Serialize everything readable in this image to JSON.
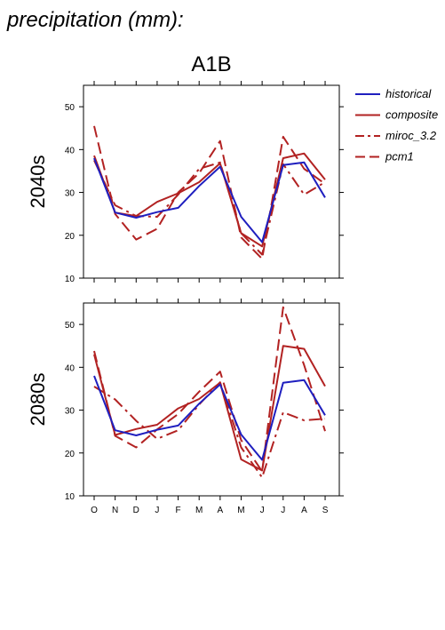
{
  "figure": {
    "title": "precipitation (mm):",
    "scenario": "A1B"
  },
  "chart_data": [
    {
      "type": "line",
      "panel": "2040s",
      "ylabel": "2040s",
      "categories": [
        "O",
        "N",
        "D",
        "J",
        "F",
        "M",
        "A",
        "M",
        "J",
        "J",
        "A",
        "S"
      ],
      "ylim": [
        10,
        55
      ],
      "yticks": [
        10,
        20,
        30,
        40,
        50
      ],
      "series": [
        {
          "name": "historical",
          "color": "#1f1fbf",
          "dash": "solid",
          "values": [
            38,
            25.3,
            24.1,
            25.4,
            26.4,
            31.5,
            36,
            24.3,
            18.4,
            36.4,
            37,
            28.8
          ]
        },
        {
          "name": "composite",
          "color": "#b22222",
          "dash": "solid",
          "values": [
            38.6,
            25.3,
            24.5,
            27.8,
            29.8,
            32.4,
            36.8,
            20.5,
            17.4,
            38,
            39.1,
            33
          ]
        },
        {
          "name": "miroc_3.2",
          "color": "#b22222",
          "dash": "dashdot",
          "values": [
            37.5,
            27,
            24.5,
            24.3,
            29.5,
            35.5,
            37,
            20.5,
            15.5,
            36.6,
            29.5,
            32.4
          ]
        },
        {
          "name": "pcm1",
          "color": "#b22222",
          "dash": "dash",
          "values": [
            45.5,
            25,
            19,
            21.5,
            30,
            34.5,
            42,
            19.5,
            14.5,
            43,
            35.5,
            32
          ]
        }
      ]
    },
    {
      "type": "line",
      "panel": "2080s",
      "ylabel": "2080s",
      "categories": [
        "O",
        "N",
        "D",
        "J",
        "F",
        "M",
        "A",
        "M",
        "J",
        "J",
        "A",
        "S"
      ],
      "ylim": [
        10,
        55
      ],
      "yticks": [
        10,
        20,
        30,
        40,
        50
      ],
      "series": [
        {
          "name": "historical",
          "color": "#1f1fbf",
          "dash": "solid",
          "values": [
            38,
            25.3,
            24.1,
            25.4,
            26.4,
            31.5,
            36,
            24.3,
            18.4,
            36.4,
            37,
            28.8
          ]
        },
        {
          "name": "composite",
          "color": "#b22222",
          "dash": "solid",
          "values": [
            43,
            24.2,
            25.6,
            26.6,
            30.4,
            32.6,
            36.4,
            18.5,
            15.9,
            45,
            44.3,
            35.6
          ]
        },
        {
          "name": "miroc_3.2",
          "color": "#b22222",
          "dash": "dashdot",
          "values": [
            35.5,
            32.5,
            27.5,
            23.3,
            25.3,
            31.3,
            36.5,
            21.3,
            14.3,
            29.5,
            27.6,
            28
          ]
        },
        {
          "name": "pcm1",
          "color": "#b22222",
          "dash": "dash",
          "values": [
            43.8,
            24,
            21.3,
            25.5,
            29.1,
            34.3,
            39,
            23,
            15.7,
            54,
            40.5,
            25.1
          ]
        }
      ]
    }
  ]
}
